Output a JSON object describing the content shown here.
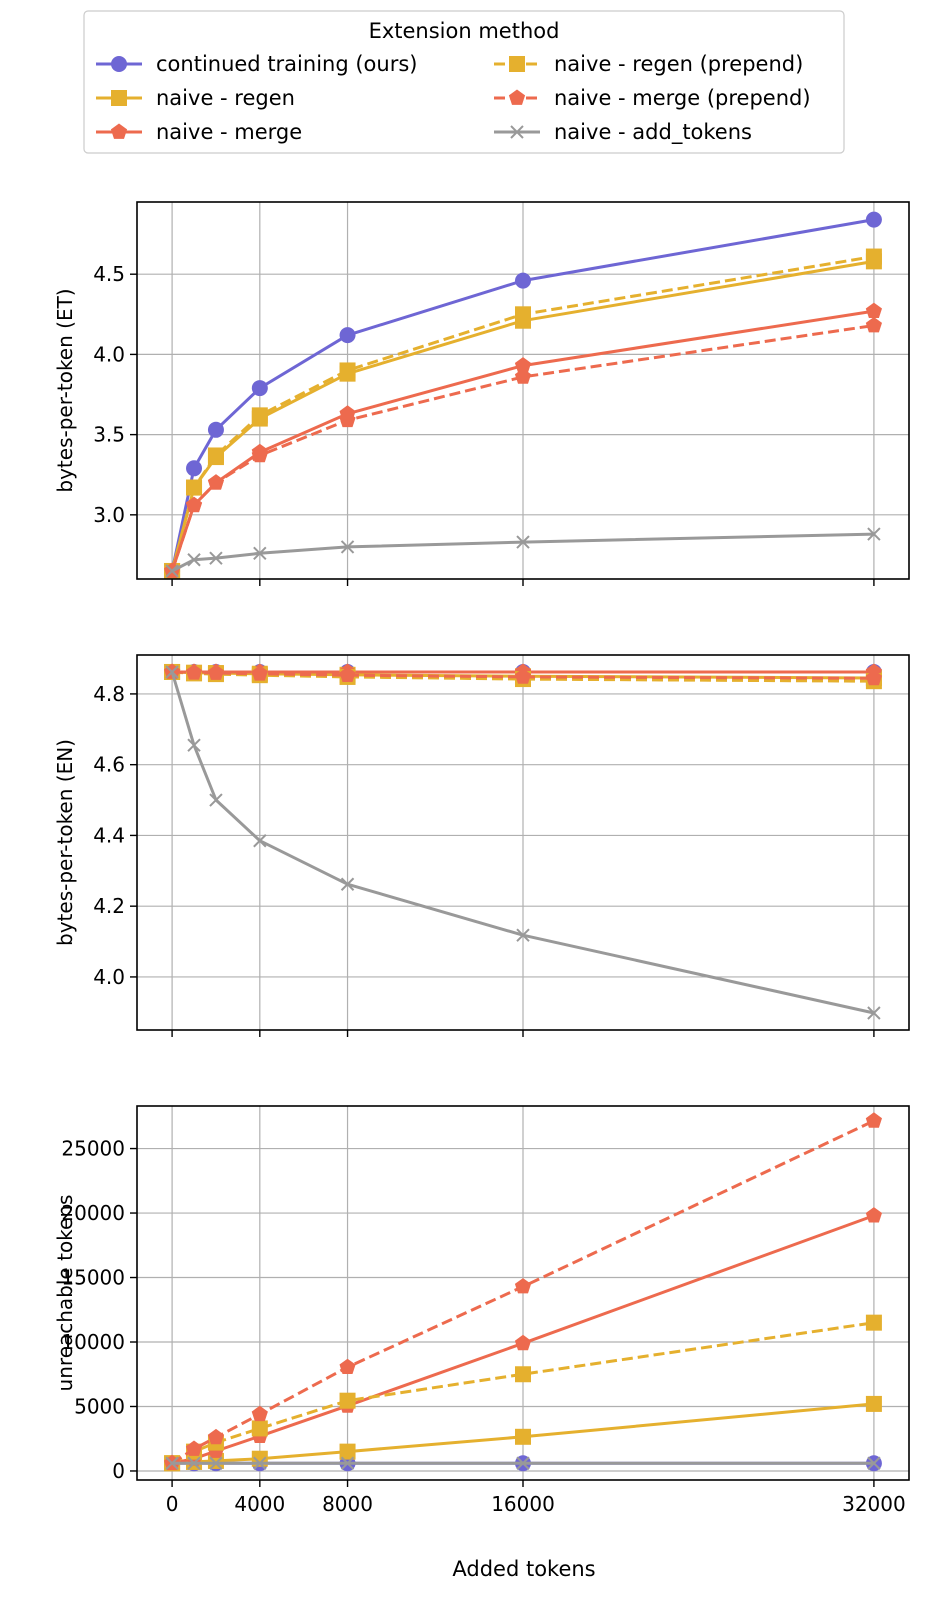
{
  "legend": {
    "title": "Extension method",
    "entries": [
      {
        "label": "continued training (ours)",
        "series": 0
      },
      {
        "label": "naive - regen",
        "series": 1
      },
      {
        "label": "naive - merge",
        "series": 2
      },
      {
        "label": "naive - regen (prepend)",
        "series": 3
      },
      {
        "label": "naive - merge (prepend)",
        "series": 4
      },
      {
        "label": "naive - add_tokens",
        "series": 5
      }
    ]
  },
  "xlabel": "Added tokens",
  "chart_data": [
    {
      "type": "line",
      "ylabel": "bytes-per-token (ET)",
      "x": [
        0,
        1000,
        2000,
        4000,
        8000,
        16000,
        32000
      ],
      "xticks": [
        0,
        4000,
        8000,
        16000,
        32000
      ],
      "xlim": [
        -1600,
        33600
      ],
      "ylim": [
        2.6,
        4.95
      ],
      "yticks": [
        "3.0",
        "3.5",
        "4.0",
        "4.5"
      ],
      "grid": true,
      "series": [
        {
          "name": "continued training (ours)",
          "color": "#6e66d4",
          "dash": "solid",
          "marker": "circle",
          "values": [
            2.65,
            3.29,
            3.53,
            3.79,
            4.12,
            4.46,
            4.84
          ]
        },
        {
          "name": "naive - regen",
          "color": "#e5b02e",
          "dash": "solid",
          "marker": "square",
          "values": [
            2.65,
            3.17,
            3.36,
            3.6,
            3.88,
            4.21,
            4.58
          ]
        },
        {
          "name": "naive - merge",
          "color": "#ed6a4e",
          "dash": "solid",
          "marker": "pentagon",
          "values": [
            2.65,
            3.06,
            3.2,
            3.39,
            3.63,
            3.93,
            4.27
          ]
        },
        {
          "name": "naive - regen (prepend)",
          "color": "#e5b02e",
          "dash": "dashed",
          "marker": "square",
          "values": [
            2.65,
            3.17,
            3.37,
            3.62,
            3.9,
            4.25,
            4.61
          ]
        },
        {
          "name": "naive - merge (prepend)",
          "color": "#ed6a4e",
          "dash": "dashed",
          "marker": "pentagon",
          "values": [
            2.65,
            3.06,
            3.2,
            3.37,
            3.59,
            3.86,
            4.18
          ]
        },
        {
          "name": "naive - add_tokens",
          "color": "#999999",
          "dash": "solid",
          "marker": "x",
          "values": [
            2.65,
            2.72,
            2.73,
            2.76,
            2.8,
            2.83,
            2.88
          ]
        }
      ]
    },
    {
      "type": "line",
      "ylabel": "bytes-per-token (EN)",
      "x": [
        0,
        1000,
        2000,
        4000,
        8000,
        16000,
        32000
      ],
      "xticks": [
        0,
        4000,
        8000,
        16000,
        32000
      ],
      "xlim": [
        -1600,
        33600
      ],
      "ylim": [
        3.85,
        4.91
      ],
      "yticks": [
        "4.0",
        "4.2",
        "4.4",
        "4.6",
        "4.8"
      ],
      "grid": true,
      "series": [
        {
          "name": "continued training (ours)",
          "color": "#6e66d4",
          "dash": "solid",
          "marker": "circle",
          "values": [
            4.862,
            4.862,
            4.862,
            4.862,
            4.862,
            4.862,
            4.862
          ]
        },
        {
          "name": "naive - regen",
          "color": "#e5b02e",
          "dash": "solid",
          "marker": "square",
          "values": [
            4.862,
            4.86,
            4.859,
            4.857,
            4.854,
            4.85,
            4.845
          ]
        },
        {
          "name": "naive - merge",
          "color": "#ed6a4e",
          "dash": "solid",
          "marker": "pentagon",
          "values": [
            4.862,
            4.862,
            4.862,
            4.862,
            4.862,
            4.862,
            4.862
          ]
        },
        {
          "name": "naive - regen (prepend)",
          "color": "#e5b02e",
          "dash": "dashed",
          "marker": "square",
          "values": [
            4.862,
            4.858,
            4.856,
            4.853,
            4.848,
            4.842,
            4.836
          ]
        },
        {
          "name": "naive - merge (prepend)",
          "color": "#ed6a4e",
          "dash": "dashed",
          "marker": "pentagon",
          "values": [
            4.862,
            4.86,
            4.859,
            4.857,
            4.853,
            4.848,
            4.844
          ]
        },
        {
          "name": "naive - add_tokens",
          "color": "#999999",
          "dash": "solid",
          "marker": "x",
          "values": [
            4.862,
            4.655,
            4.5,
            4.385,
            4.262,
            4.118,
            3.898
          ]
        }
      ]
    },
    {
      "type": "line",
      "ylabel": "unreachable tokens",
      "x": [
        0,
        1000,
        2000,
        4000,
        8000,
        16000,
        32000
      ],
      "xticks": [
        0,
        4000,
        8000,
        16000,
        32000
      ],
      "xticklabels": [
        "0",
        "4000",
        "8000",
        "16000",
        "32000"
      ],
      "xlim": [
        -1600,
        33600
      ],
      "ylim": [
        -700,
        28300
      ],
      "yticks": [
        "0",
        "5000",
        "10000",
        "15000",
        "20000",
        "25000"
      ],
      "grid": true,
      "series": [
        {
          "name": "continued training (ours)",
          "color": "#6e66d4",
          "dash": "solid",
          "marker": "circle",
          "values": [
            600,
            600,
            600,
            600,
            600,
            600,
            600
          ]
        },
        {
          "name": "naive - regen",
          "color": "#e5b02e",
          "dash": "solid",
          "marker": "square",
          "values": [
            600,
            700,
            780,
            950,
            1500,
            2650,
            5200
          ]
        },
        {
          "name": "naive - merge",
          "color": "#ed6a4e",
          "dash": "solid",
          "marker": "pentagon",
          "values": [
            600,
            950,
            1550,
            2700,
            5050,
            9900,
            19800
          ]
        },
        {
          "name": "naive - regen (prepend)",
          "color": "#e5b02e",
          "dash": "dashed",
          "marker": "square",
          "values": [
            600,
            1500,
            2200,
            3300,
            5450,
            7500,
            11500
          ]
        },
        {
          "name": "naive - merge (prepend)",
          "color": "#ed6a4e",
          "dash": "dashed",
          "marker": "pentagon",
          "values": [
            600,
            1700,
            2600,
            4400,
            8050,
            14300,
            27150
          ]
        },
        {
          "name": "naive - add_tokens",
          "color": "#999999",
          "dash": "solid",
          "marker": "x",
          "values": [
            600,
            600,
            600,
            600,
            600,
            600,
            600
          ]
        }
      ]
    }
  ]
}
